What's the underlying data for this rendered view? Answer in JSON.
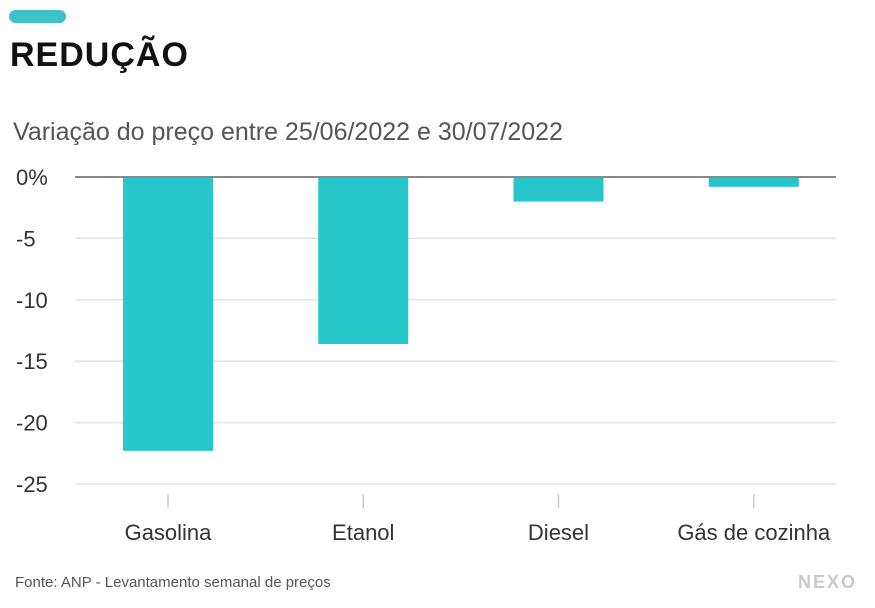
{
  "header": {
    "title": "REDUÇÃO",
    "subtitle": "Variação do preço entre 25/06/2022 e 30/07/2022"
  },
  "footer": {
    "source": "Fonte: ANP - Levantamento semanal de preços",
    "brand": "NEXO"
  },
  "colors": {
    "bar": "#26c6cb",
    "tag": "#3fc1c9",
    "grid": "#e3e3e3",
    "zero_line": "#888888",
    "text": "#333333"
  },
  "chart_data": {
    "type": "bar",
    "categories": [
      "Gasolina",
      "Etanol",
      "Diesel",
      "Gás de cozinha"
    ],
    "values": [
      -22.3,
      -13.6,
      -2.0,
      -0.8
    ],
    "ylim": [
      -25,
      0
    ],
    "yticks": [
      0,
      -5,
      -10,
      -15,
      -20,
      -25
    ],
    "ytick_labels": [
      "0%",
      "-5",
      "-10",
      "-15",
      "-20",
      "-25"
    ],
    "grid": true,
    "xlabel": "",
    "ylabel": ""
  }
}
